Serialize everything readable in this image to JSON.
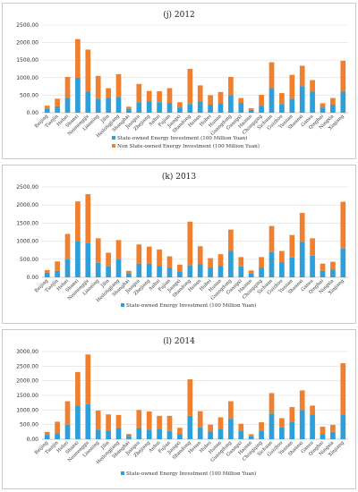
{
  "colors": {
    "state": "#2E9FD8",
    "nonstate": "#F07F2E",
    "grid": "#dddddd",
    "axis": "#999999"
  },
  "chart_data": [
    {
      "type": "bar",
      "stacked": true,
      "title": "(j) 2012",
      "categories": [
        "Beijing",
        "Tianjin",
        "Hebei",
        "Shanxi",
        "Neimenggu",
        "Liaoning",
        "Jilin",
        "Heilongjiang",
        "Shanghai",
        "Jiangsu",
        "Zhejiang",
        "Anhui",
        "Fujian",
        "Jiangxi",
        "Shandong",
        "Henan",
        "Hubei",
        "Hunan",
        "Guangdong",
        "Guangxi",
        "Hainan",
        "Chongqing",
        "Sichuan",
        "Guizhou",
        "Yunnan",
        "Shaanxi",
        "Gansu",
        "Qinghai",
        "Ningxia",
        "Xinjiang"
      ],
      "ylim": [
        0,
        2500
      ],
      "yticks": [
        "0.00",
        "500.00",
        "1000.00",
        "1500.00",
        "2000.00",
        "2500.00"
      ],
      "legend_position": "bottom",
      "series": [
        {
          "name": "State-owned Energy Investment (100 Million Yuan)",
          "color": "#2E9FD8",
          "values": [
            120,
            180,
            420,
            1000,
            600,
            400,
            420,
            450,
            100,
            300,
            330,
            300,
            280,
            150,
            250,
            320,
            230,
            270,
            500,
            280,
            80,
            200,
            700,
            250,
            400,
            760,
            600,
            150,
            230,
            600
          ]
        },
        {
          "name": "Non State-owned Energy Investment (100 Million Yuan)",
          "color": "#F07F2E",
          "values": [
            80,
            220,
            600,
            1100,
            1200,
            650,
            280,
            650,
            70,
            520,
            290,
            310,
            420,
            150,
            1000,
            460,
            270,
            320,
            520,
            140,
            50,
            310,
            740,
            310,
            680,
            580,
            330,
            120,
            190,
            880
          ]
        }
      ]
    },
    {
      "type": "bar",
      "stacked": true,
      "title": "(k) 2013",
      "categories": [
        "Beijing",
        "Tianjin",
        "Hebei",
        "Shanxi",
        "Neimenggu",
        "Liaoning",
        "Jilin",
        "Heilongjiang",
        "Shanghai",
        "Jiangsu",
        "Zhejiang",
        "Anhui",
        "Fujian",
        "Jiangxi",
        "Shandong",
        "Henan",
        "Hubei",
        "Hunan",
        "Guangdong",
        "Guangxi",
        "Hainan",
        "Chongqing",
        "Sichuan",
        "Guizhou",
        "Yunnan",
        "Shaanxi",
        "Gansu",
        "Qinghai",
        "Ningxia",
        "Xinjiang"
      ],
      "ylim": [
        0,
        2500
      ],
      "yticks": [
        "0.00",
        "500.00",
        "1000.00",
        "1500.00",
        "2000.00",
        "2500.00"
      ],
      "legend_position": "bottom",
      "series": [
        {
          "name": "State-owned Energy Investment (100 Million Yuan)",
          "color": "#2E9FD8",
          "values": [
            130,
            180,
            500,
            1000,
            950,
            400,
            300,
            500,
            120,
            380,
            380,
            320,
            260,
            160,
            330,
            370,
            260,
            320,
            730,
            300,
            100,
            260,
            700,
            420,
            550,
            980,
            600,
            180,
            220,
            800
          ]
        },
        {
          "name": "Non State-owned Energy Investment (100 Million Yuan)",
          "color": "#F07F2E",
          "values": [
            70,
            260,
            700,
            1100,
            1350,
            680,
            380,
            530,
            60,
            530,
            470,
            450,
            320,
            190,
            1210,
            490,
            270,
            320,
            590,
            260,
            90,
            300,
            720,
            310,
            620,
            800,
            480,
            200,
            210,
            1290
          ]
        }
      ]
    },
    {
      "type": "bar",
      "stacked": true,
      "title": "(l) 2014",
      "categories": [
        "Beijing",
        "Tianjin",
        "Hebei",
        "Shanxi",
        "Neimenggu",
        "Liaoning",
        "Jilin",
        "Heilongjiang",
        "Shanghai",
        "Jiangsu",
        "Zhejiang",
        "Anhui",
        "Fujian",
        "Jiangxi",
        "Shandong",
        "Henan",
        "Hubei",
        "Hunan",
        "Guangdong",
        "Guangxi",
        "Hainan",
        "Chongqing",
        "Sichuan",
        "Guizhou",
        "Yunnan",
        "Shaanxi",
        "Gansu",
        "Qinghai",
        "Ningxia",
        "Xinjiang"
      ],
      "ylim": [
        0,
        3000
      ],
      "yticks": [
        "0.00",
        "500.00",
        "1000.00",
        "1500.00",
        "2000.00",
        "2500.00",
        "3000.00"
      ],
      "legend_position": "bottom",
      "series": [
        {
          "name": "State-owned Energy Investment (100 Million Yuan)",
          "color": "#2E9FD8",
          "values": [
            150,
            200,
            500,
            1150,
            1200,
            330,
            300,
            380,
            110,
            380,
            330,
            350,
            280,
            170,
            800,
            400,
            260,
            350,
            700,
            300,
            100,
            300,
            880,
            400,
            600,
            1000,
            850,
            180,
            250,
            850
          ]
        },
        {
          "name": "Non State-owned Energy Investment (100 Million Yuan)",
          "color": "#F07F2E",
          "values": [
            100,
            400,
            800,
            1150,
            1700,
            650,
            550,
            450,
            70,
            620,
            620,
            450,
            520,
            220,
            1250,
            560,
            240,
            400,
            600,
            230,
            70,
            280,
            700,
            320,
            500,
            670,
            300,
            250,
            240,
            1750
          ]
        }
      ]
    }
  ]
}
